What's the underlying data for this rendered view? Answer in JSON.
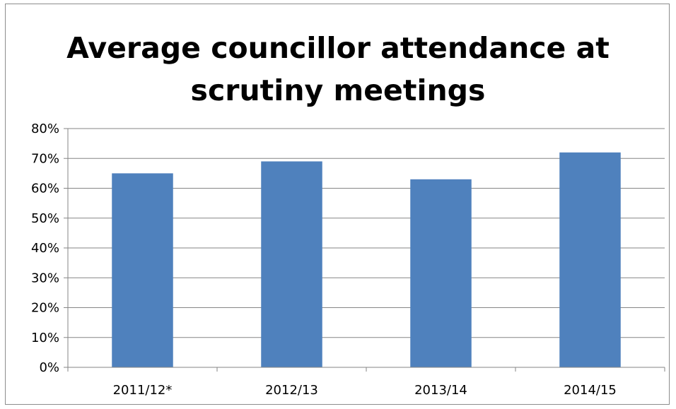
{
  "chart_data": {
    "type": "bar",
    "title_lines": [
      "Average councillor attendance at",
      "scrutiny meetings"
    ],
    "categories": [
      "2011/12*",
      "2012/13",
      "2013/14",
      "2014/15"
    ],
    "values": [
      65,
      69,
      63,
      72
    ],
    "yticks": [
      "0%",
      "10%",
      "20%",
      "30%",
      "40%",
      "50%",
      "60%",
      "70%",
      "80%"
    ],
    "ylim": [
      0,
      80
    ],
    "ytick_step": 10,
    "grid": true,
    "legend": "none",
    "bar_color": "#4f81bd",
    "grid_color": "#868686"
  }
}
